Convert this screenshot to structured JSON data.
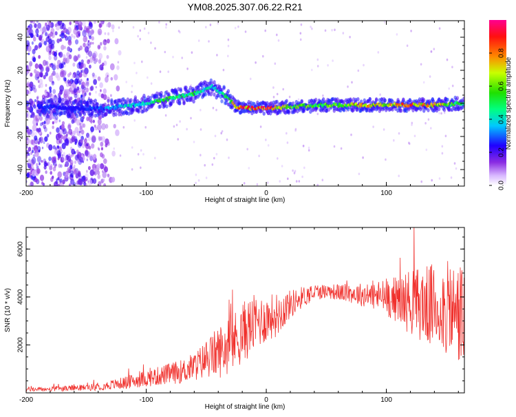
{
  "title": "YM08.2025.307.06.22.R21",
  "colors": {
    "snr_line": "#f0302c",
    "frame": "#000000",
    "background": "#ffffff"
  },
  "chart_data": [
    {
      "type": "heatmap",
      "name": "spectrogram",
      "xlabel": "Height of straight line (km)",
      "ylabel": "Frequency (Hz)",
      "xlim": [
        -200,
        165
      ],
      "ylim": [
        -50,
        50
      ],
      "x_ticks": [
        -200,
        -100,
        0,
        100
      ],
      "y_ticks": [
        -40,
        -20,
        0,
        20,
        40
      ],
      "colorbar": {
        "label": "Normalized spectral amplitude",
        "range": [
          0.0,
          1.0
        ],
        "ticks": [
          "0.0",
          "0.2",
          "0.4",
          "0.6",
          "0.8"
        ],
        "colormap": "rainbow (white-violet-blue-cyan-green-yellow-red-magenta)"
      },
      "ridge": {
        "description": "main spectral ridge (frequency in Hz vs height in km)",
        "x": [
          -180,
          -160,
          -140,
          -120,
          -100,
          -80,
          -60,
          -45,
          -35,
          -25,
          -10,
          0,
          20,
          50,
          80,
          100,
          120,
          140,
          160
        ],
        "y": [
          -2,
          -3,
          -3,
          -2,
          0,
          3,
          6,
          10,
          5,
          -2,
          -3,
          -3,
          -2,
          -1,
          -1,
          -1,
          -1,
          -1,
          0
        ],
        "amplitude": [
          0.25,
          0.2,
          0.3,
          0.4,
          0.45,
          0.55,
          0.5,
          0.4,
          0.45,
          0.8,
          0.85,
          0.9,
          0.55,
          0.6,
          0.75,
          0.7,
          0.8,
          0.75,
          0.55
        ]
      },
      "noise_region": {
        "description": "broadband low-amplitude scatter at low heights",
        "x_range": [
          -200,
          -120
        ],
        "amplitude_range": [
          0.05,
          0.25
        ]
      }
    },
    {
      "type": "line",
      "name": "snr",
      "xlabel": "Height of straight line (km)",
      "ylabel": "SNR (10 * v/v)",
      "xlim": [
        -200,
        165
      ],
      "ylim": [
        0,
        6900
      ],
      "x_ticks": [
        -200,
        -100,
        0,
        100
      ],
      "y_ticks": [
        2000,
        4000,
        6000
      ],
      "series": [
        {
          "name": "SNR",
          "x": [
            -200,
            -180,
            -160,
            -140,
            -120,
            -110,
            -100,
            -90,
            -80,
            -70,
            -60,
            -50,
            -40,
            -30,
            -20,
            -10,
            0,
            10,
            20,
            30,
            40,
            50,
            60,
            70,
            80,
            90,
            100,
            110,
            120,
            130,
            140,
            150,
            160,
            165
          ],
          "y": [
            150,
            150,
            200,
            250,
            400,
            500,
            600,
            700,
            800,
            900,
            1100,
            1400,
            1700,
            2000,
            2500,
            2900,
            3100,
            3300,
            3700,
            4000,
            4200,
            4250,
            4200,
            4150,
            4100,
            4050,
            4000,
            3900,
            3800,
            3700,
            3600,
            3500,
            3300,
            3200
          ],
          "variability": [
            100,
            100,
            120,
            150,
            250,
            300,
            350,
            400,
            450,
            500,
            600,
            800,
            1100,
            1200,
            1300,
            1200,
            1000,
            900,
            600,
            450,
            350,
            300,
            350,
            400,
            500,
            600,
            800,
            1000,
            1400,
            1600,
            1800,
            2000,
            2200,
            2400
          ]
        }
      ]
    }
  ]
}
